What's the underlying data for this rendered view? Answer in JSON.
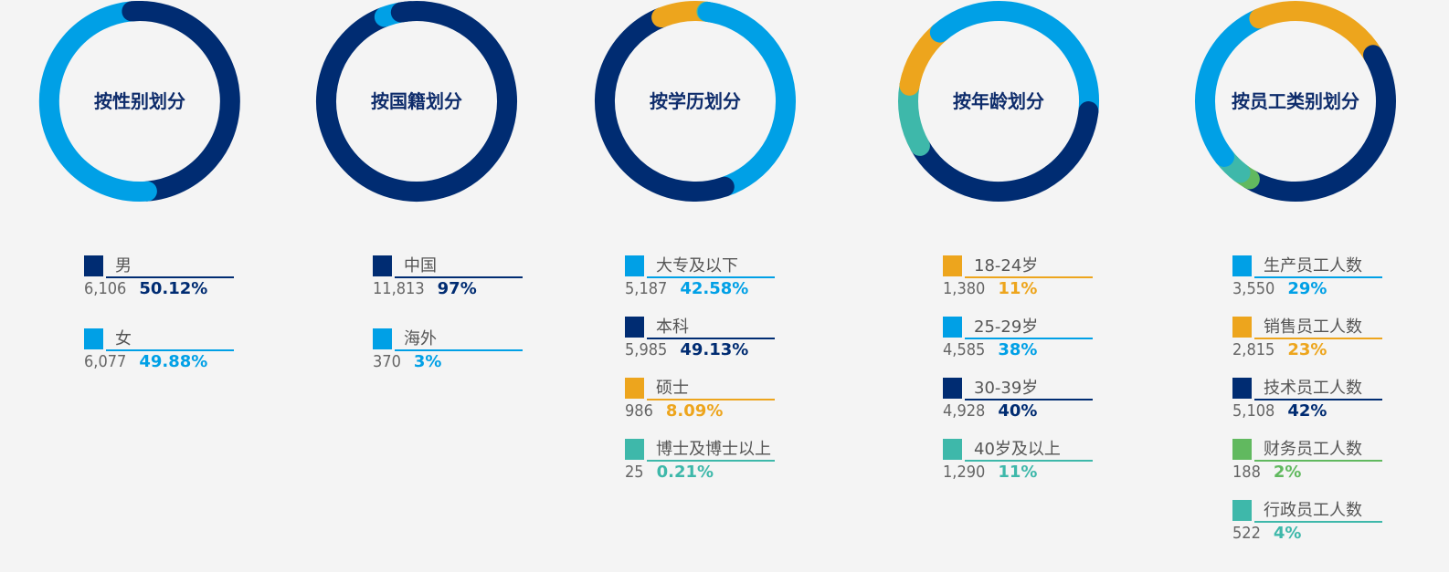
{
  "chart_data": [
    {
      "type": "pie",
      "title": "按性别划分",
      "start": 355,
      "slices": [
        {
          "label": "男",
          "count": "6,106",
          "percent_text": "50.12%",
          "value": 50.12,
          "color": "#002c72"
        },
        {
          "label": "女",
          "count": "6,077",
          "percent_text": "49.88%",
          "value": 49.88,
          "color": "#00a0e6"
        }
      ]
    },
    {
      "type": "pie",
      "title": "按国籍划分",
      "start": 350,
      "slices": [
        {
          "label": "中国",
          "count": "11,813",
          "percent_text": "97%",
          "value": 97,
          "color": "#002c72"
        },
        {
          "label": "海外",
          "count": "370",
          "percent_text": "3%",
          "value": 3,
          "color": "#00a0e6"
        }
      ]
    },
    {
      "type": "pie",
      "title": "按学历划分",
      "start": 8,
      "slices": [
        {
          "label": "大专及以下",
          "count": "5,187",
          "percent_text": "42.58%",
          "value": 42.58,
          "color": "#00a0e6"
        },
        {
          "label": "本科",
          "count": "5,985",
          "percent_text": "49.13%",
          "value": 49.13,
          "color": "#002c72"
        },
        {
          "label": "硕士",
          "count": "986",
          "percent_text": "8.09%",
          "value": 8.09,
          "color": "#eda51d"
        },
        {
          "label": "博士及博士以上",
          "count": "25",
          "percent_text": "0.21%",
          "value": 0.21,
          "color": "#3eb8aa"
        }
      ]
    },
    {
      "type": "pie",
      "title": "按年龄划分",
      "start": 280,
      "slices": [
        {
          "label": "18-24岁",
          "count": "1,380",
          "percent_text": "11%",
          "value": 11,
          "color": "#eda51d"
        },
        {
          "label": "25-29岁",
          "count": "4,585",
          "percent_text": "38%",
          "value": 38,
          "color": "#00a0e6"
        },
        {
          "label": "30-39岁",
          "count": "4,928",
          "percent_text": "40%",
          "value": 40,
          "color": "#002c72"
        },
        {
          "label": "40岁及以上",
          "count": "1,290",
          "percent_text": "11%",
          "value": 11,
          "color": "#3eb8aa"
        }
      ]
    },
    {
      "type": "pie",
      "title": "按员工类别划分",
      "start": 232,
      "slices": [
        {
          "label": "生产员工人数",
          "count": "3,550",
          "percent_text": "29%",
          "value": 29,
          "color": "#00a0e6"
        },
        {
          "label": "销售员工人数",
          "count": "2,815",
          "percent_text": "23%",
          "value": 23,
          "color": "#eda51d"
        },
        {
          "label": "技术员工人数",
          "count": "5,108",
          "percent_text": "42%",
          "value": 42,
          "color": "#002c72"
        },
        {
          "label": "财务员工人数",
          "count": "188",
          "percent_text": "2%",
          "value": 2,
          "color": "#61b95f"
        },
        {
          "label": "行政员工人数",
          "count": "522",
          "percent_text": "4%",
          "value": 4,
          "color": "#3eb8aa"
        }
      ]
    }
  ]
}
